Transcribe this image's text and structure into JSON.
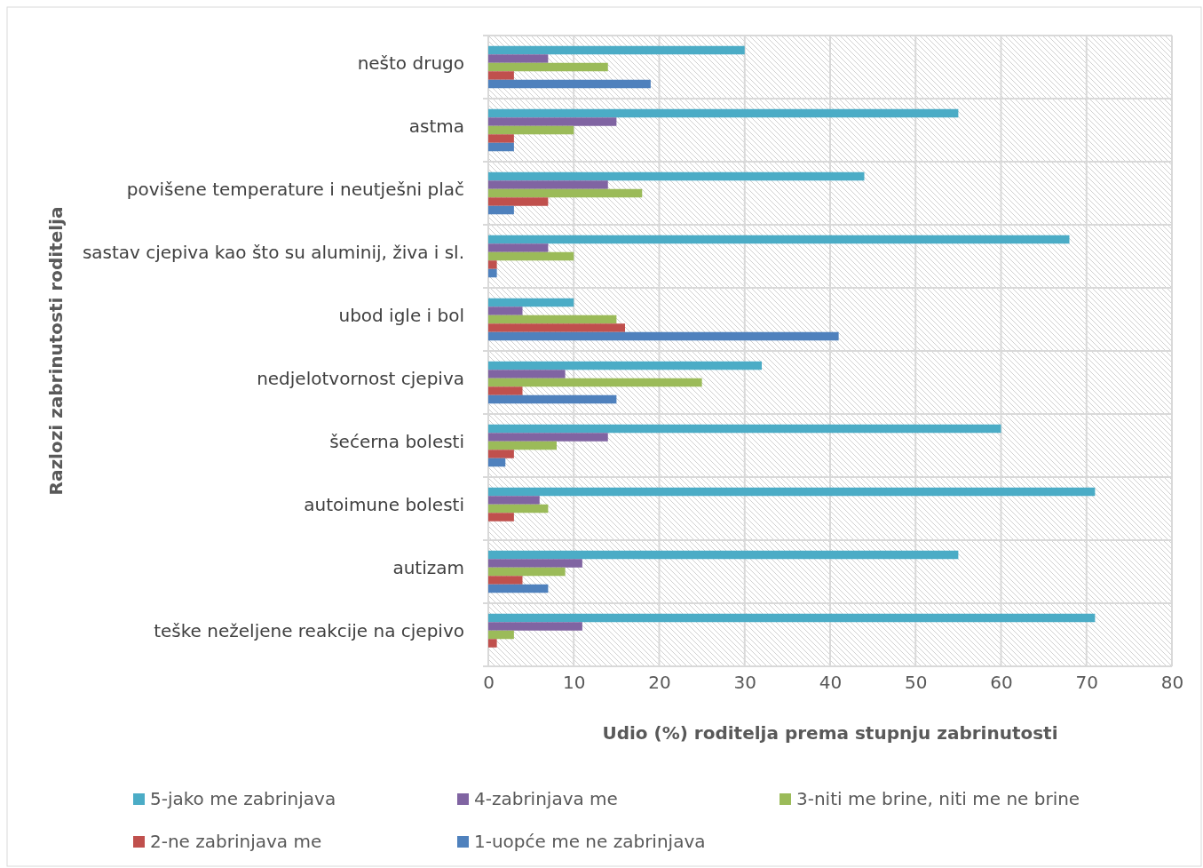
{
  "chart_data": {
    "type": "bar",
    "orientation": "horizontal",
    "xlabel": "Udio (%) roditelja prema stupnju zabrinutosti",
    "ylabel": "Razlozi zabrinutosti roditelja",
    "categories": [
      "nešto drugo",
      "astma",
      "povišene temperature i neutješni plač",
      "sastav cjepiva kao što su aluminij, živa i sl.",
      "ubod igle i bol",
      "nedjelotvornost cjepiva",
      "šećerna bolesti",
      "autoimune bolesti",
      "autizam",
      "teške neželjene reakcije na cjepivo"
    ],
    "series": [
      {
        "name": "5-jako me zabrinjava",
        "color": "#4bacc6",
        "values": [
          30,
          55,
          44,
          68,
          10,
          32,
          60,
          71,
          55,
          71
        ]
      },
      {
        "name": "4-zabrinjava me",
        "color": "#8064a2",
        "values": [
          7,
          15,
          14,
          7,
          4,
          9,
          14,
          6,
          11,
          11
        ]
      },
      {
        "name": "3-niti me brine, niti me ne brine",
        "color": "#9bbb59",
        "values": [
          14,
          10,
          18,
          10,
          15,
          25,
          8,
          7,
          9,
          3
        ]
      },
      {
        "name": "2-ne zabrinjava me",
        "color": "#c0504d",
        "values": [
          3,
          3,
          7,
          1,
          16,
          4,
          3,
          3,
          4,
          1
        ]
      },
      {
        "name": "1-uopće me ne zabrinjava",
        "color": "#4f81bd",
        "values": [
          19,
          3,
          3,
          1,
          41,
          15,
          2,
          0,
          7,
          0
        ]
      }
    ],
    "xlim": [
      0,
      80
    ],
    "xticks": [
      0,
      10,
      20,
      30,
      40,
      50,
      60,
      70,
      80
    ],
    "grid": true,
    "legend": "bottom"
  }
}
